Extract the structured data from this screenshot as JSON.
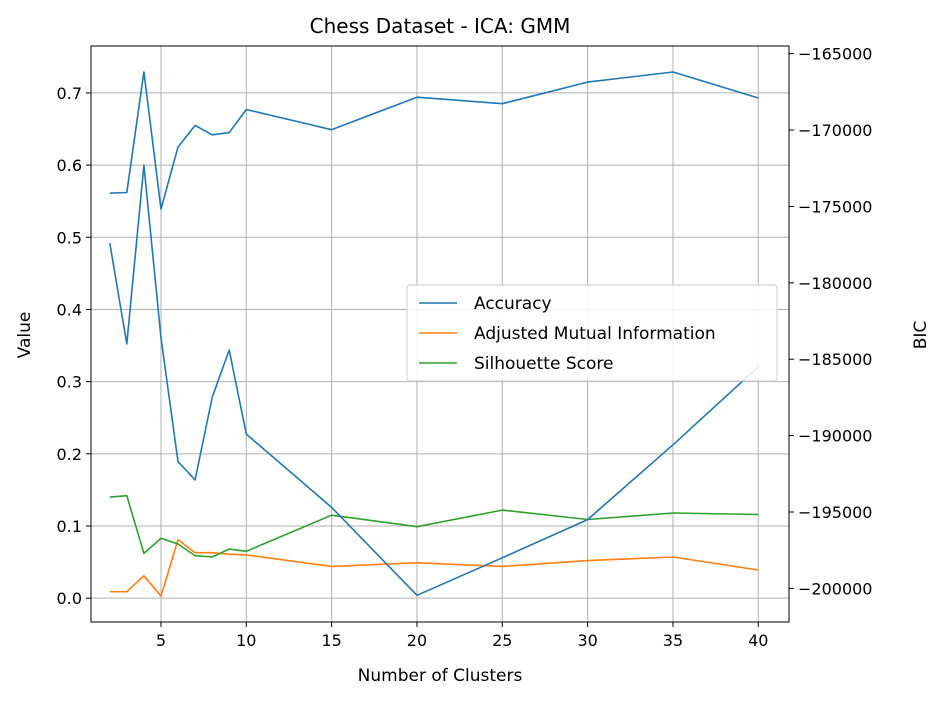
{
  "chart_data": {
    "type": "line",
    "title": "Chess Dataset - ICA: GMM",
    "xlabel": "Number of Clusters",
    "ylabel": "Value",
    "y2label": "BIC",
    "x": [
      2,
      3,
      4,
      5,
      6,
      7,
      8,
      9,
      10,
      15,
      20,
      25,
      30,
      35,
      40
    ],
    "xlim": [
      0.9,
      41.8
    ],
    "ylim": [
      -0.033,
      0.765
    ],
    "y2lim": [
      -202200,
      -164500
    ],
    "xticks": [
      5,
      10,
      15,
      20,
      25,
      30,
      35,
      40
    ],
    "yticks": [
      0.0,
      0.1,
      0.2,
      0.3,
      0.4,
      0.5,
      0.6,
      0.7
    ],
    "yticklabels": [
      "0.0",
      "0.1",
      "0.2",
      "0.3",
      "0.4",
      "0.5",
      "0.6",
      "0.7"
    ],
    "y2ticks": [
      -200000,
      -195000,
      -190000,
      -185000,
      -180000,
      -175000,
      -170000,
      -165000
    ],
    "y2ticklabels": [
      "−200000",
      "−195000",
      "−190000",
      "−185000",
      "−180000",
      "−175000",
      "−170000",
      "−165000"
    ],
    "grid": true,
    "legend_position": "center-right",
    "series": [
      {
        "name": "Accuracy",
        "color": "#1f77b4",
        "axis": "left",
        "values": [
          0.561,
          0.562,
          0.729,
          0.539,
          0.625,
          0.655,
          0.642,
          0.645,
          0.677,
          0.649,
          0.694,
          0.685,
          0.715,
          0.729,
          0.693
        ]
      },
      {
        "name": "Adjusted Mutual Information",
        "color": "#ff7f0e",
        "axis": "left",
        "values": [
          0.009,
          0.009,
          0.031,
          0.003,
          0.081,
          0.063,
          0.063,
          0.061,
          0.06,
          0.044,
          0.049,
          0.044,
          0.052,
          0.057,
          0.039
        ]
      },
      {
        "name": "Silhouette Score",
        "color": "#2ca02c",
        "axis": "left",
        "values": [
          0.14,
          0.142,
          0.062,
          0.083,
          0.075,
          0.059,
          0.057,
          0.068,
          0.065,
          0.115,
          0.099,
          0.122,
          0.109,
          0.118,
          0.116
        ]
      },
      {
        "name": "BIC",
        "color": "#1f77b4",
        "axis": "right",
        "in_legend": false,
        "values": [
          -177400,
          -184000,
          -172300,
          -183600,
          -191700,
          -192900,
          -187500,
          -184400,
          -189900,
          -194700,
          -200450,
          -198000,
          -195500,
          -190600,
          -185500
        ]
      }
    ]
  }
}
